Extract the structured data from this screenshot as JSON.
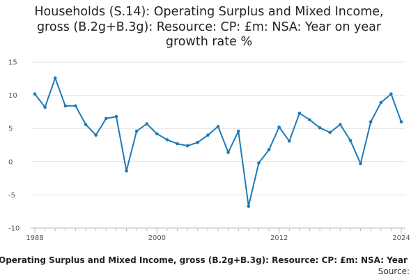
{
  "chart_data": {
    "type": "line",
    "title": "Households (S.14): Operating Surplus and Mixed Income, gross (B.2g+B.3g): Resource: CP: £m: NSA: Year on year growth rate %",
    "xlabel": "Operating Surplus and Mixed Income, gross (B.2g+B.3g): Resource: CP: £m: NSA: Year",
    "ylabel": "",
    "source_label": "Source:",
    "x": [
      1988,
      1989,
      1990,
      1991,
      1992,
      1993,
      1994,
      1995,
      1996,
      1997,
      1998,
      1999,
      2000,
      2001,
      2002,
      2003,
      2004,
      2005,
      2006,
      2007,
      2008,
      2009,
      2010,
      2011,
      2012,
      2013,
      2014,
      2015,
      2016,
      2017,
      2018,
      2019,
      2020,
      2021,
      2022,
      2023,
      2024
    ],
    "values": [
      10.2,
      8.2,
      12.6,
      8.4,
      8.4,
      5.6,
      4.0,
      6.5,
      6.8,
      -1.4,
      4.6,
      5.7,
      4.2,
      3.3,
      2.7,
      2.4,
      2.9,
      4.0,
      5.3,
      1.4,
      4.6,
      -6.7,
      -0.2,
      1.8,
      5.2,
      3.1,
      7.3,
      6.3,
      5.1,
      4.4,
      5.6,
      3.2,
      -0.3,
      6.0,
      8.9,
      10.2,
      6.0
    ],
    "xlim": [
      1988,
      2024
    ],
    "ylim": [
      -10,
      15
    ],
    "yticks": [
      15,
      10,
      5,
      0,
      -5,
      -10
    ],
    "yticks_labels": [
      "15",
      "10",
      "5",
      "0",
      "-5",
      "-10"
    ],
    "xticks": [
      1988,
      2000,
      2012,
      2024
    ],
    "xticks_labels": [
      "1988",
      "2000",
      "2012",
      "2024"
    ],
    "grid": "horizontal",
    "colors": {
      "line": "#1b7ab8",
      "grid": "#e0e0e0",
      "axis": "#bbbbbb"
    }
  }
}
